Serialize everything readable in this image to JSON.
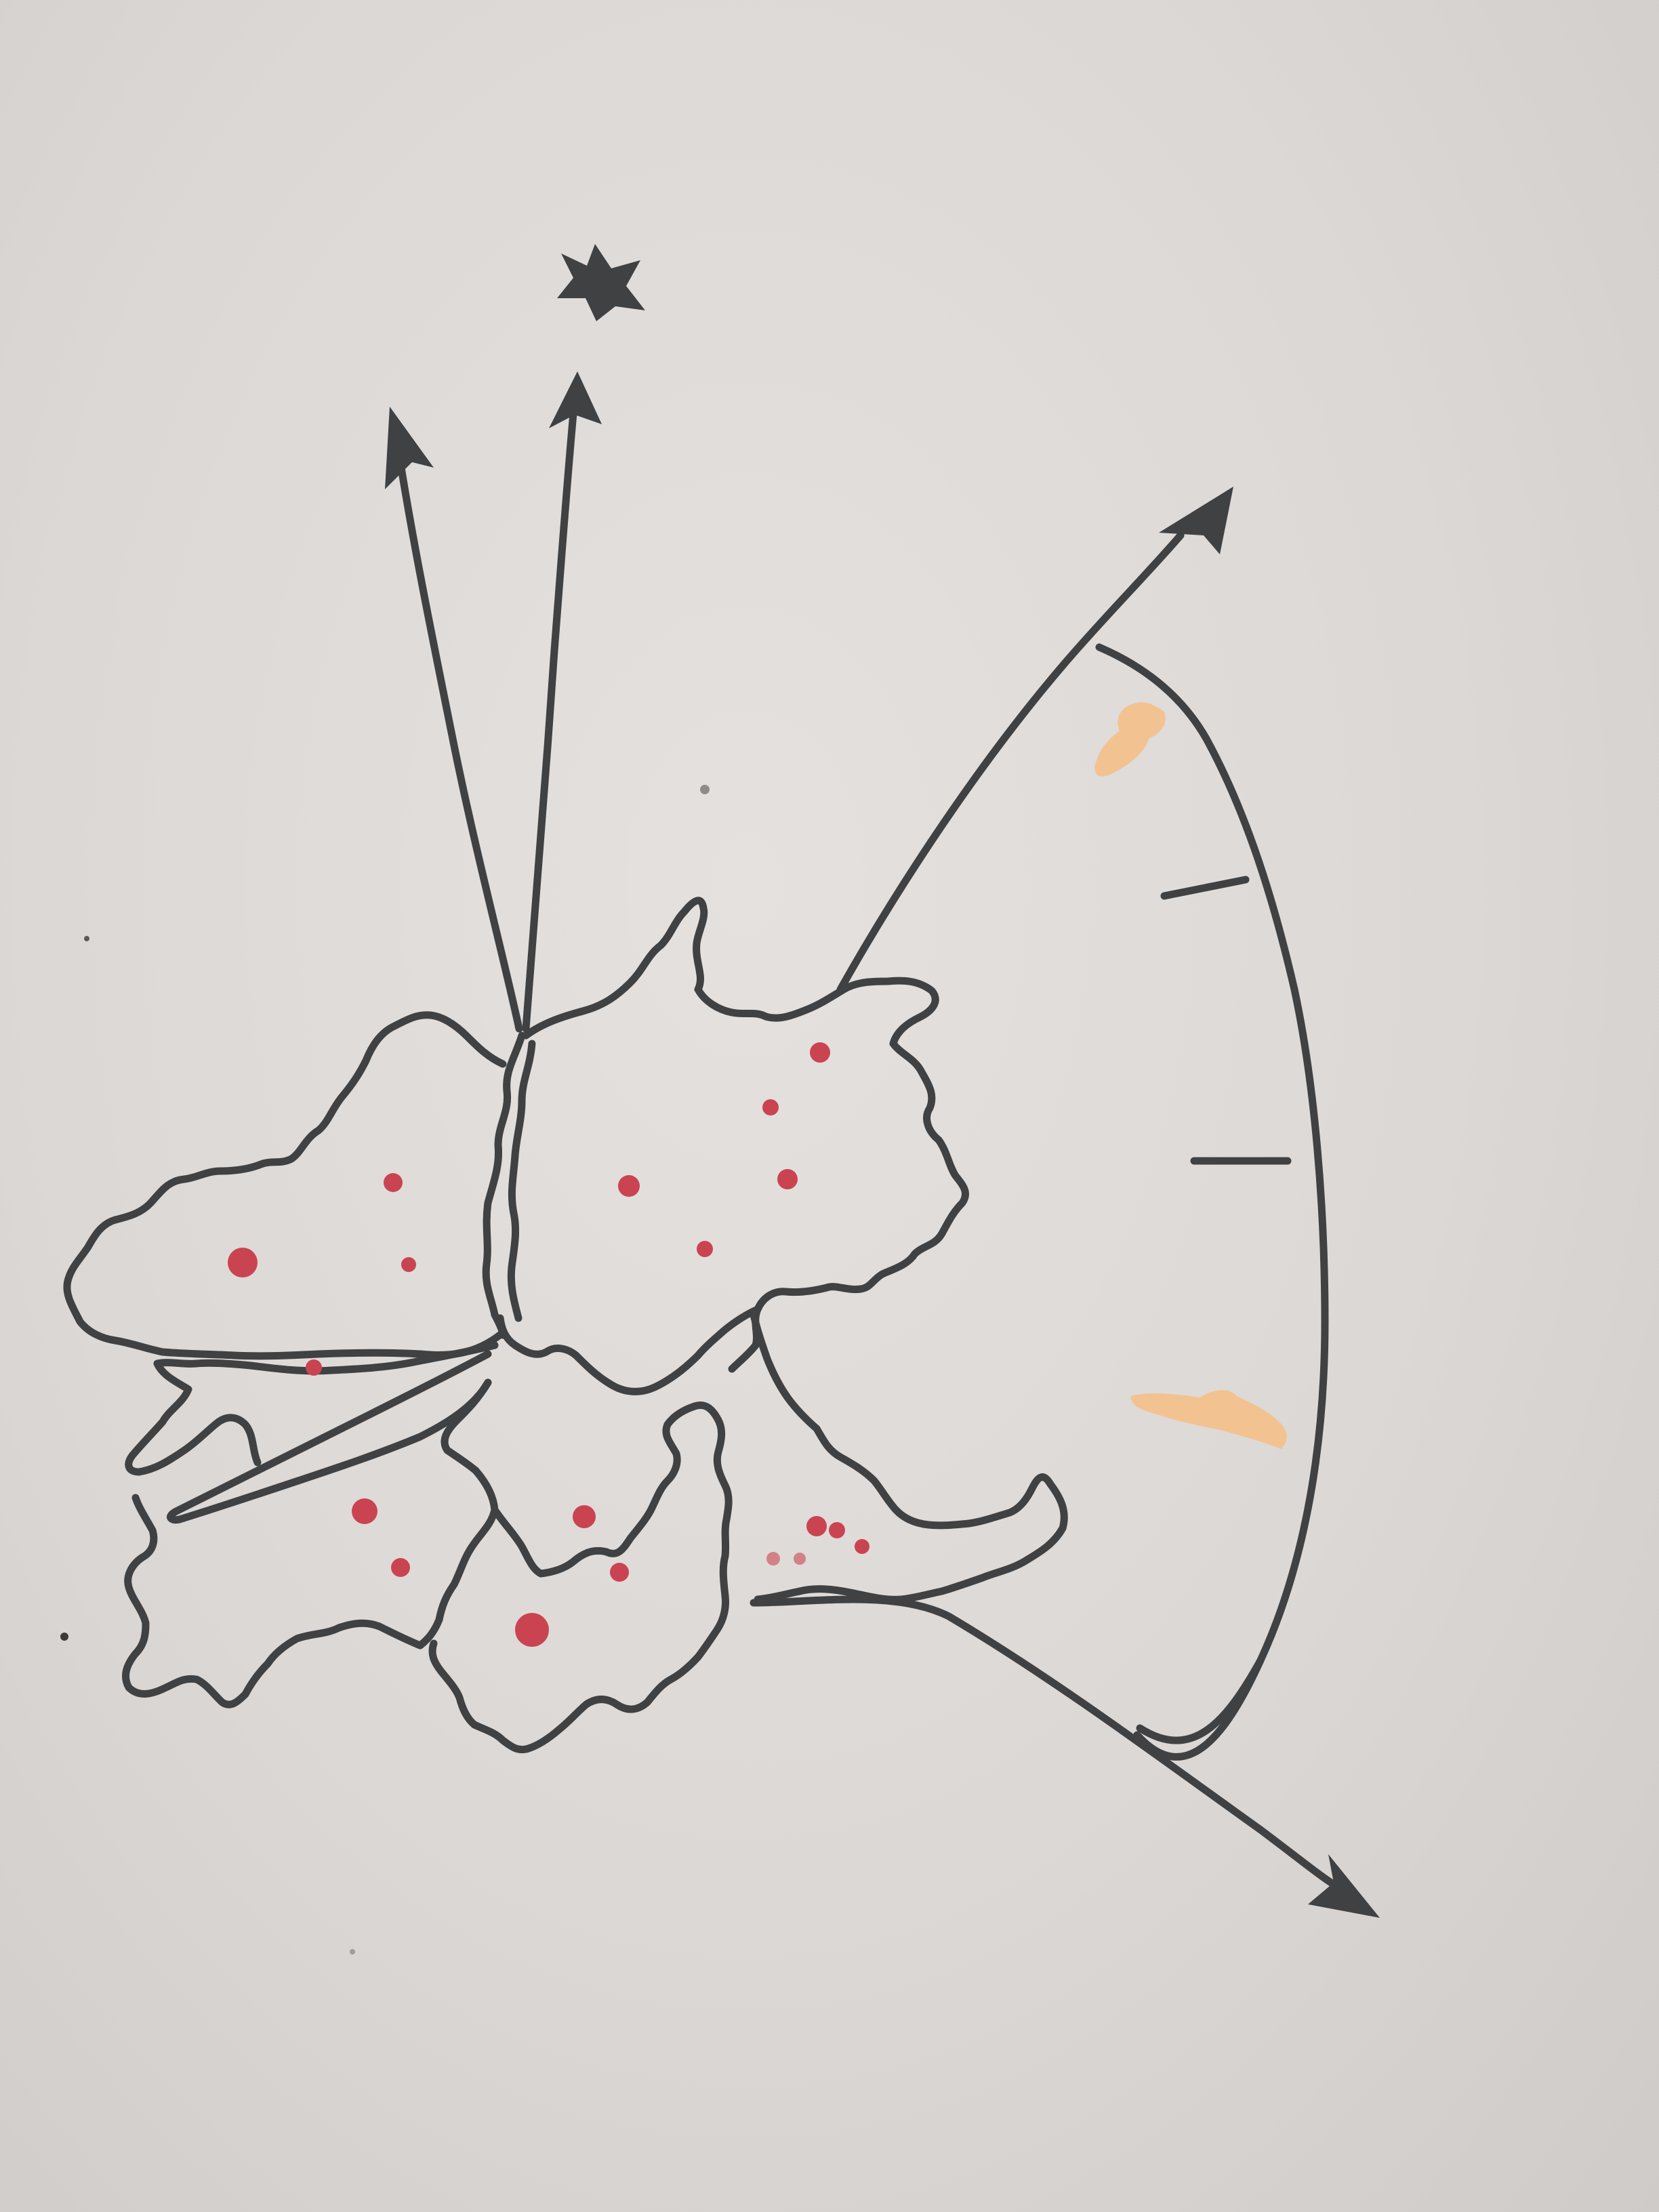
{
  "colors": {
    "paper": "#dedad8",
    "ink": "#3f4143",
    "dot": "#c94450",
    "highlight": "#f2c391"
  },
  "icons": {
    "star": "star-icon",
    "arrowhead": "arrowhead-icon"
  },
  "scale_ticks_count": 2,
  "red_dots_count": 19,
  "highlight_marks_count": 2
}
